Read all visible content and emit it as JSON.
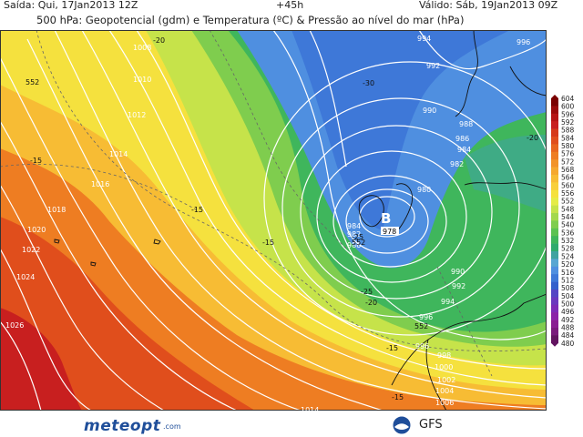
{
  "header": {
    "run": "Saída: Qui, 17Jan2013 12Z",
    "lead": "+45h",
    "valid": "Válido: Sáb, 19Jan2013 09Z",
    "title": "500 hPa: Geopotencial (gdm) e Temperatura (ºC) & Pressão ao nível do mar (hPa)"
  },
  "low_marker": {
    "letter": "B",
    "value": "978"
  },
  "isobar_labels": [
    "1008",
    "1010",
    "1012",
    "1014",
    "1016",
    "1018",
    "1020",
    "1022",
    "1024",
    "1026",
    "994",
    "996",
    "992",
    "990",
    "988",
    "986",
    "984",
    "982",
    "980",
    "984",
    "982",
    "986",
    "996",
    "998",
    "1000",
    "1002",
    "1004",
    "1006",
    "1008",
    "1010",
    "1012",
    "1014",
    "990",
    "992",
    "994",
    "996"
  ],
  "temp_labels": [
    "-20",
    "-30",
    "-15",
    "-15",
    "-15",
    "-25",
    "-20",
    "-15",
    "-15",
    "-20",
    "-25"
  ],
  "height_labels": [
    "552",
    "552",
    "552"
  ],
  "legend": {
    "values": [
      "604",
      "600",
      "596",
      "592",
      "588",
      "584",
      "580",
      "576",
      "572",
      "568",
      "564",
      "560",
      "556",
      "552",
      "548",
      "544",
      "540",
      "536",
      "532",
      "528",
      "524",
      "520",
      "516",
      "512",
      "508",
      "504",
      "500",
      "496",
      "492",
      "488",
      "484",
      "480"
    ],
    "colors": [
      "#7a0000",
      "#9a0a0a",
      "#b51414",
      "#c81f1f",
      "#d63a1a",
      "#e04e1c",
      "#e8661e",
      "#ee7d22",
      "#f29328",
      "#f5a82e",
      "#f7bc34",
      "#f8cf3a",
      "#f5e13e",
      "#e5ec48",
      "#c6e34a",
      "#a3d84c",
      "#7fcd4e",
      "#5cc252",
      "#3fb65c",
      "#2fab6d",
      "#3fa3a0",
      "#58a6d2",
      "#4f8fe0",
      "#3e78d8",
      "#3460cc",
      "#5446c4",
      "#6a38be",
      "#7c2bb6",
      "#8a22a8",
      "#8a1d92",
      "#7a1a7c",
      "#621460"
    ]
  },
  "footer": {
    "site": "meteopt",
    "site_domain": ".com",
    "model": "GFS"
  }
}
